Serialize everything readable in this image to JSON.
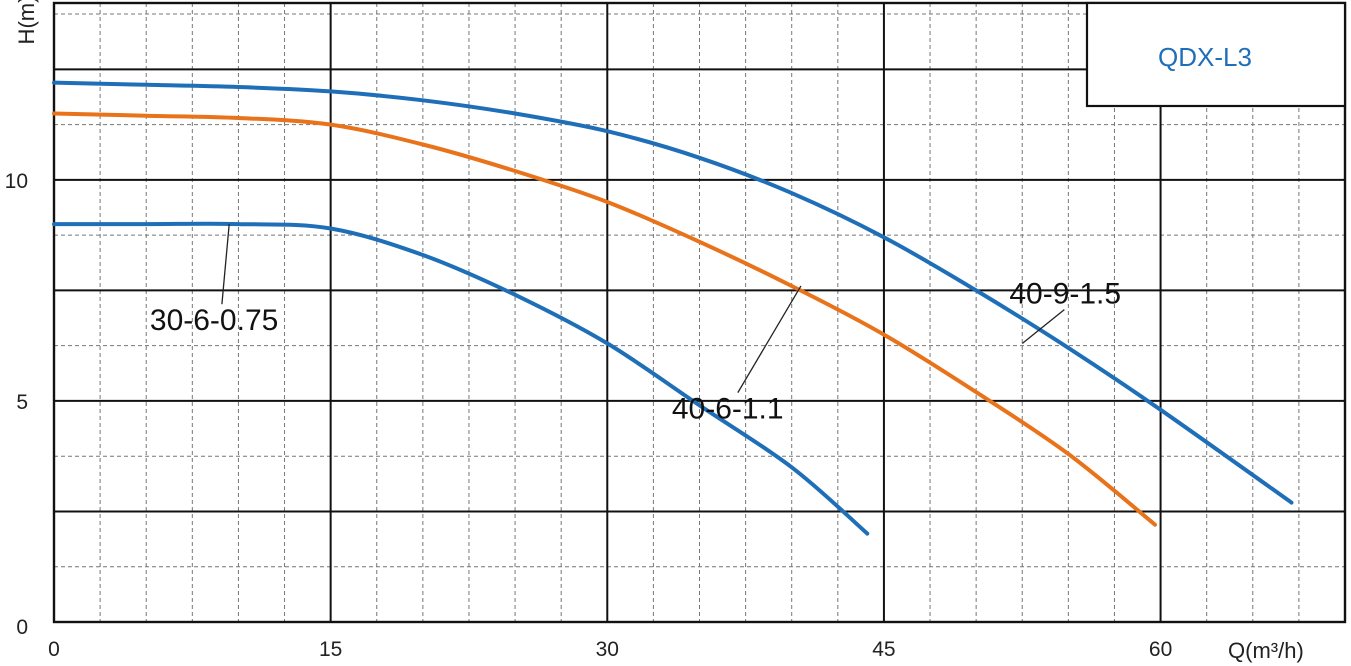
{
  "chart_data": {
    "type": "line",
    "title": "QDX-L3",
    "xlabel": "Q(m³/h)",
    "ylabel": "H(m)",
    "xlim": [
      0,
      70
    ],
    "ylim": [
      0,
      14
    ],
    "x_ticks": [
      "0",
      "15",
      "30",
      "45",
      "60"
    ],
    "y_ticks": [
      "0",
      "5",
      "10"
    ],
    "grid": true,
    "series": [
      {
        "name": "30-6-0.75",
        "color": "#1f6fb8",
        "points": [
          [
            0,
            9.0
          ],
          [
            5,
            9.0
          ],
          [
            10,
            9.0
          ],
          [
            15,
            8.9
          ],
          [
            20,
            8.3
          ],
          [
            25,
            7.4
          ],
          [
            30,
            6.3
          ],
          [
            35,
            4.9
          ],
          [
            40,
            3.5
          ],
          [
            44.1,
            2.0
          ]
        ]
      },
      {
        "name": "40-6-1.1",
        "color": "#e8731a",
        "points": [
          [
            0,
            11.5
          ],
          [
            5,
            11.45
          ],
          [
            10,
            11.4
          ],
          [
            15,
            11.25
          ],
          [
            20,
            10.8
          ],
          [
            25,
            10.2
          ],
          [
            30,
            9.5
          ],
          [
            35,
            8.6
          ],
          [
            40,
            7.6
          ],
          [
            45,
            6.5
          ],
          [
            50,
            5.2
          ],
          [
            55,
            3.8
          ],
          [
            59.7,
            2.2
          ]
        ]
      },
      {
        "name": "40-9-1.5",
        "color": "#1f6fb8",
        "points": [
          [
            0,
            12.2
          ],
          [
            5,
            12.15
          ],
          [
            10,
            12.1
          ],
          [
            15,
            12.0
          ],
          [
            20,
            11.8
          ],
          [
            25,
            11.5
          ],
          [
            30,
            11.1
          ],
          [
            35,
            10.5
          ],
          [
            40,
            9.7
          ],
          [
            45,
            8.7
          ],
          [
            50,
            7.5
          ],
          [
            55,
            6.2
          ],
          [
            60,
            4.8
          ],
          [
            67.1,
            2.7
          ]
        ]
      }
    ],
    "annotations": [
      {
        "text": "30-6-0.75",
        "series": "30-6-0.75",
        "label_at": [
          5.2,
          6.6
        ],
        "pointer_to": [
          9.5,
          9.0
        ]
      },
      {
        "text": "40-6-1.1",
        "series": "40-6-1.1",
        "label_at": [
          33.5,
          4.6
        ],
        "pointer_to": [
          40.5,
          7.6
        ]
      },
      {
        "text": "40-9-1.5",
        "series": "40-9-1.5",
        "label_at": [
          51.8,
          7.2
        ],
        "pointer_to": [
          52.5,
          6.3
        ]
      }
    ]
  }
}
